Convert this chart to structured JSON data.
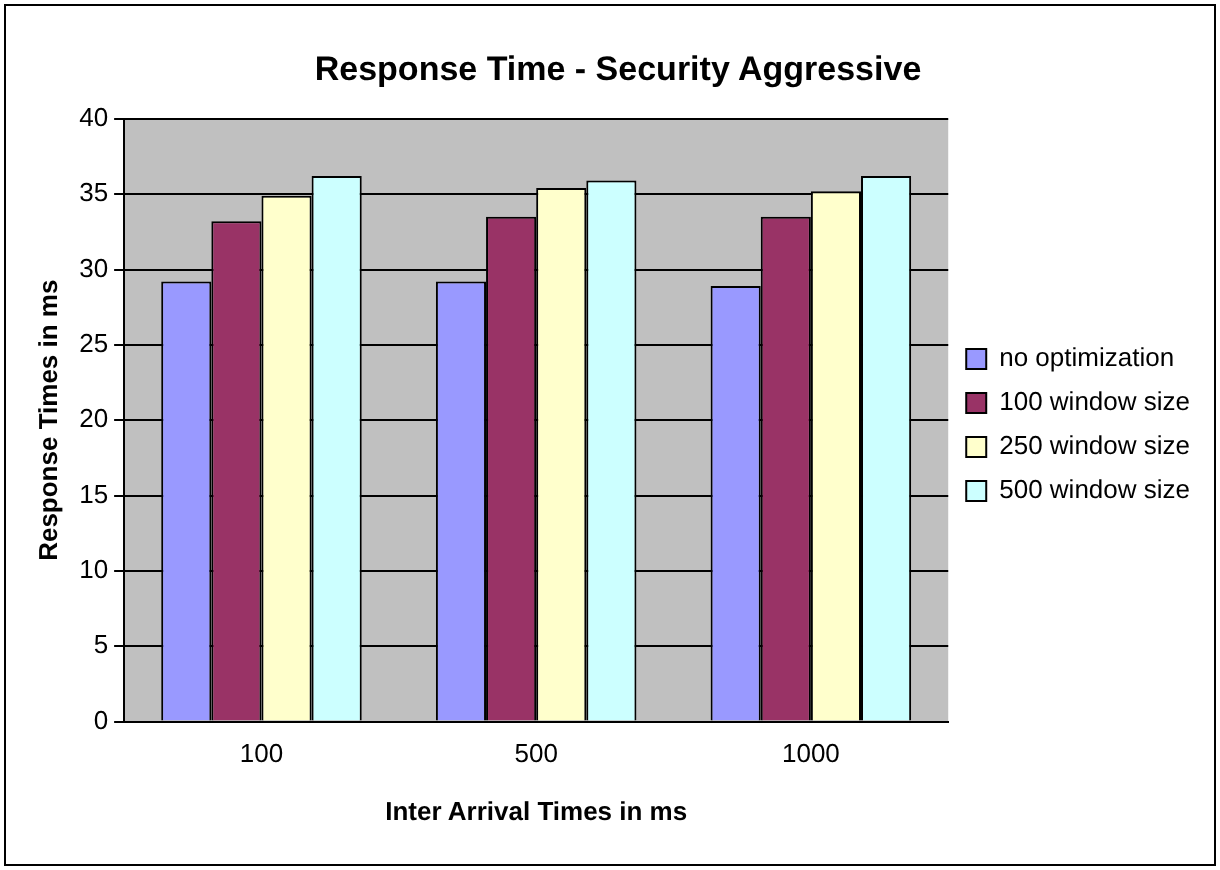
{
  "chart_data": {
    "type": "bar",
    "title": "Response Time - Security Aggressive",
    "xlabel": "Inter Arrival Times in ms",
    "ylabel": "Response Times in ms",
    "categories": [
      "100",
      "500",
      "1000"
    ],
    "series": [
      {
        "name": "no optimization",
        "color": "#9999ff",
        "values": [
          29.2,
          29.2,
          28.9
        ]
      },
      {
        "name": "100 window size",
        "color": "#993366",
        "values": [
          33.2,
          33.5,
          33.5
        ]
      },
      {
        "name": "250 window size",
        "color": "#ffffcc",
        "values": [
          34.9,
          35.4,
          35.2
        ]
      },
      {
        "name": "500 window size",
        "color": "#ccffff",
        "values": [
          36.2,
          35.9,
          36.2
        ]
      }
    ],
    "ylim": [
      0,
      40
    ],
    "yticks": [
      0,
      5,
      10,
      15,
      20,
      25,
      30,
      35,
      40
    ],
    "grid": "y",
    "legend": "right"
  }
}
